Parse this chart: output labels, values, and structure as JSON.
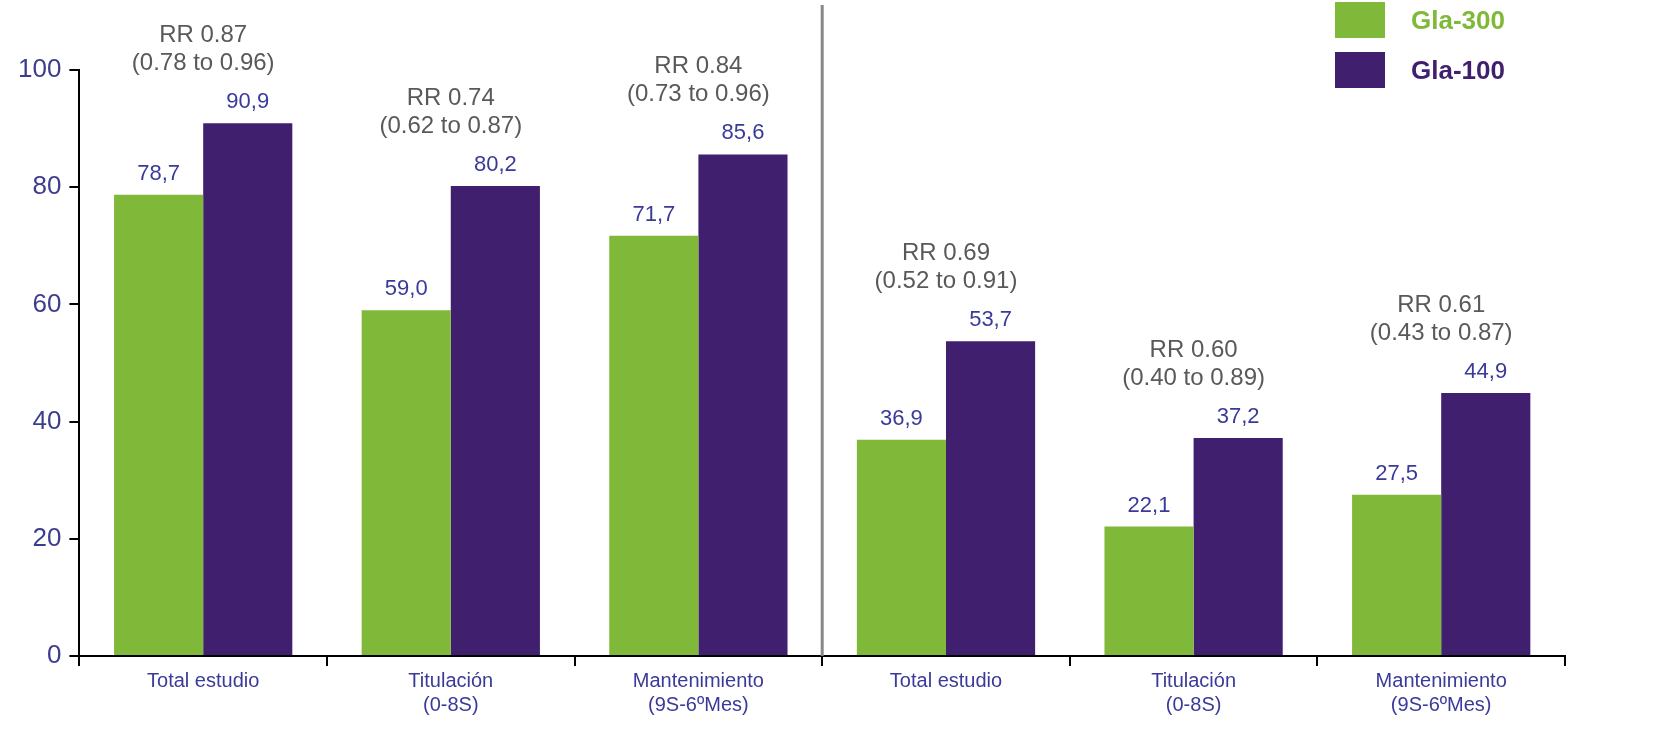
{
  "chart_data": {
    "type": "bar",
    "categories": [
      "Total estudio",
      "Titulación\n(0-8S)",
      "Mantenimiento\n(9S-6ºMes)",
      "Total estudio",
      "Titulación\n(0-8S)",
      "Mantenimiento\n(9S-6ºMes)"
    ],
    "series": [
      {
        "name": "Gla-300",
        "color": "#80b83a",
        "values": [
          78.7,
          59.0,
          71.7,
          36.9,
          22.1,
          27.5
        ],
        "value_labels": [
          "78,7",
          "59,0",
          "71,7",
          "36,9",
          "22,1",
          "27,5"
        ]
      },
      {
        "name": "Gla-100",
        "color": "#3f1f6e",
        "values": [
          90.9,
          80.2,
          85.6,
          53.7,
          37.2,
          44.9
        ],
        "value_labels": [
          "90,9",
          "80,2",
          "85,6",
          "53,7",
          "37,2",
          "44,9"
        ]
      }
    ],
    "ylim": [
      0,
      100
    ],
    "yticks": [
      0,
      20,
      40,
      60,
      80,
      100
    ],
    "grid": false,
    "legend": "top right",
    "annotations": [
      "RR 0.87\n(0.78 to 0.96)",
      "RR 0.74\n(0.62 to 0.87)",
      "RR 0.84\n(0.73 to 0.96)",
      "RR 0.69\n(0.52 to 0.91)",
      "RR 0.60\n(0.40 to 0.89)",
      "RR 0.61\n(0.43 to 0.87)"
    ]
  }
}
